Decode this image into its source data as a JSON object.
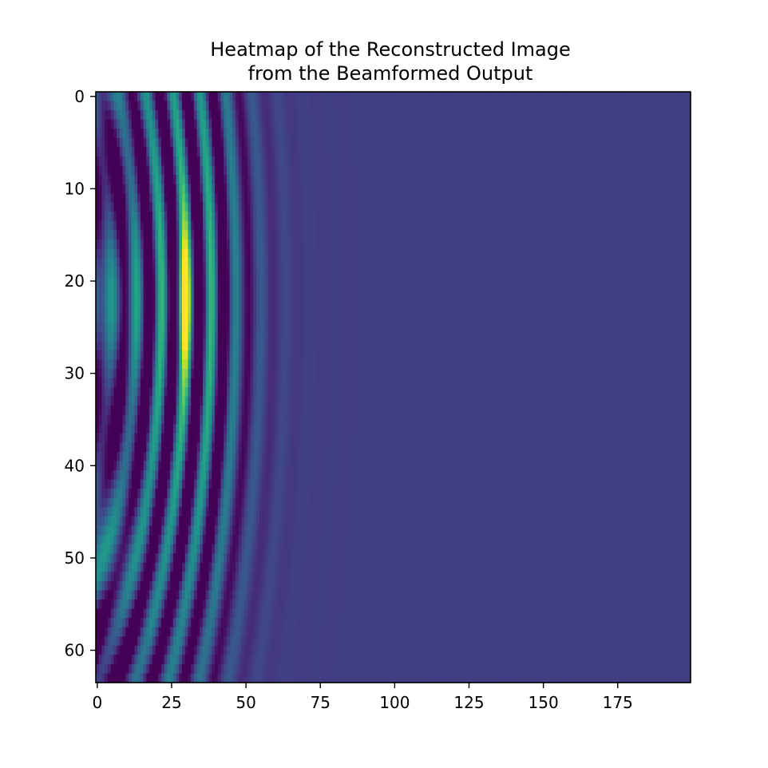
{
  "chart_data": {
    "type": "heatmap",
    "title_lines": [
      "Heatmap of the Reconstructed Image",
      "from the Beamformed Output"
    ],
    "xlabel": "",
    "ylabel": "",
    "rows": 64,
    "cols": 200,
    "xlim": [
      -0.5,
      199.5
    ],
    "ylim": [
      63.5,
      -0.5
    ],
    "x_ticks": [
      0,
      25,
      50,
      75,
      100,
      125,
      150,
      175
    ],
    "x_tick_labels": [
      "0",
      "25",
      "50",
      "75",
      "100",
      "125",
      "150",
      "175"
    ],
    "y_ticks": [
      0,
      10,
      20,
      30,
      40,
      50,
      60
    ],
    "y_tick_labels": [
      "0",
      "10",
      "20",
      "30",
      "40",
      "50",
      "60"
    ],
    "colormap": "viridis",
    "background_level": 0.18,
    "wavefront": {
      "center_row": 22,
      "center_col": -28,
      "wavelength": 8.4,
      "front_radius": 58,
      "peak_row": 22,
      "peak_col": 29,
      "peak_value": 1.0,
      "min_value": 0.0
    },
    "legend": "none",
    "grid": false
  }
}
